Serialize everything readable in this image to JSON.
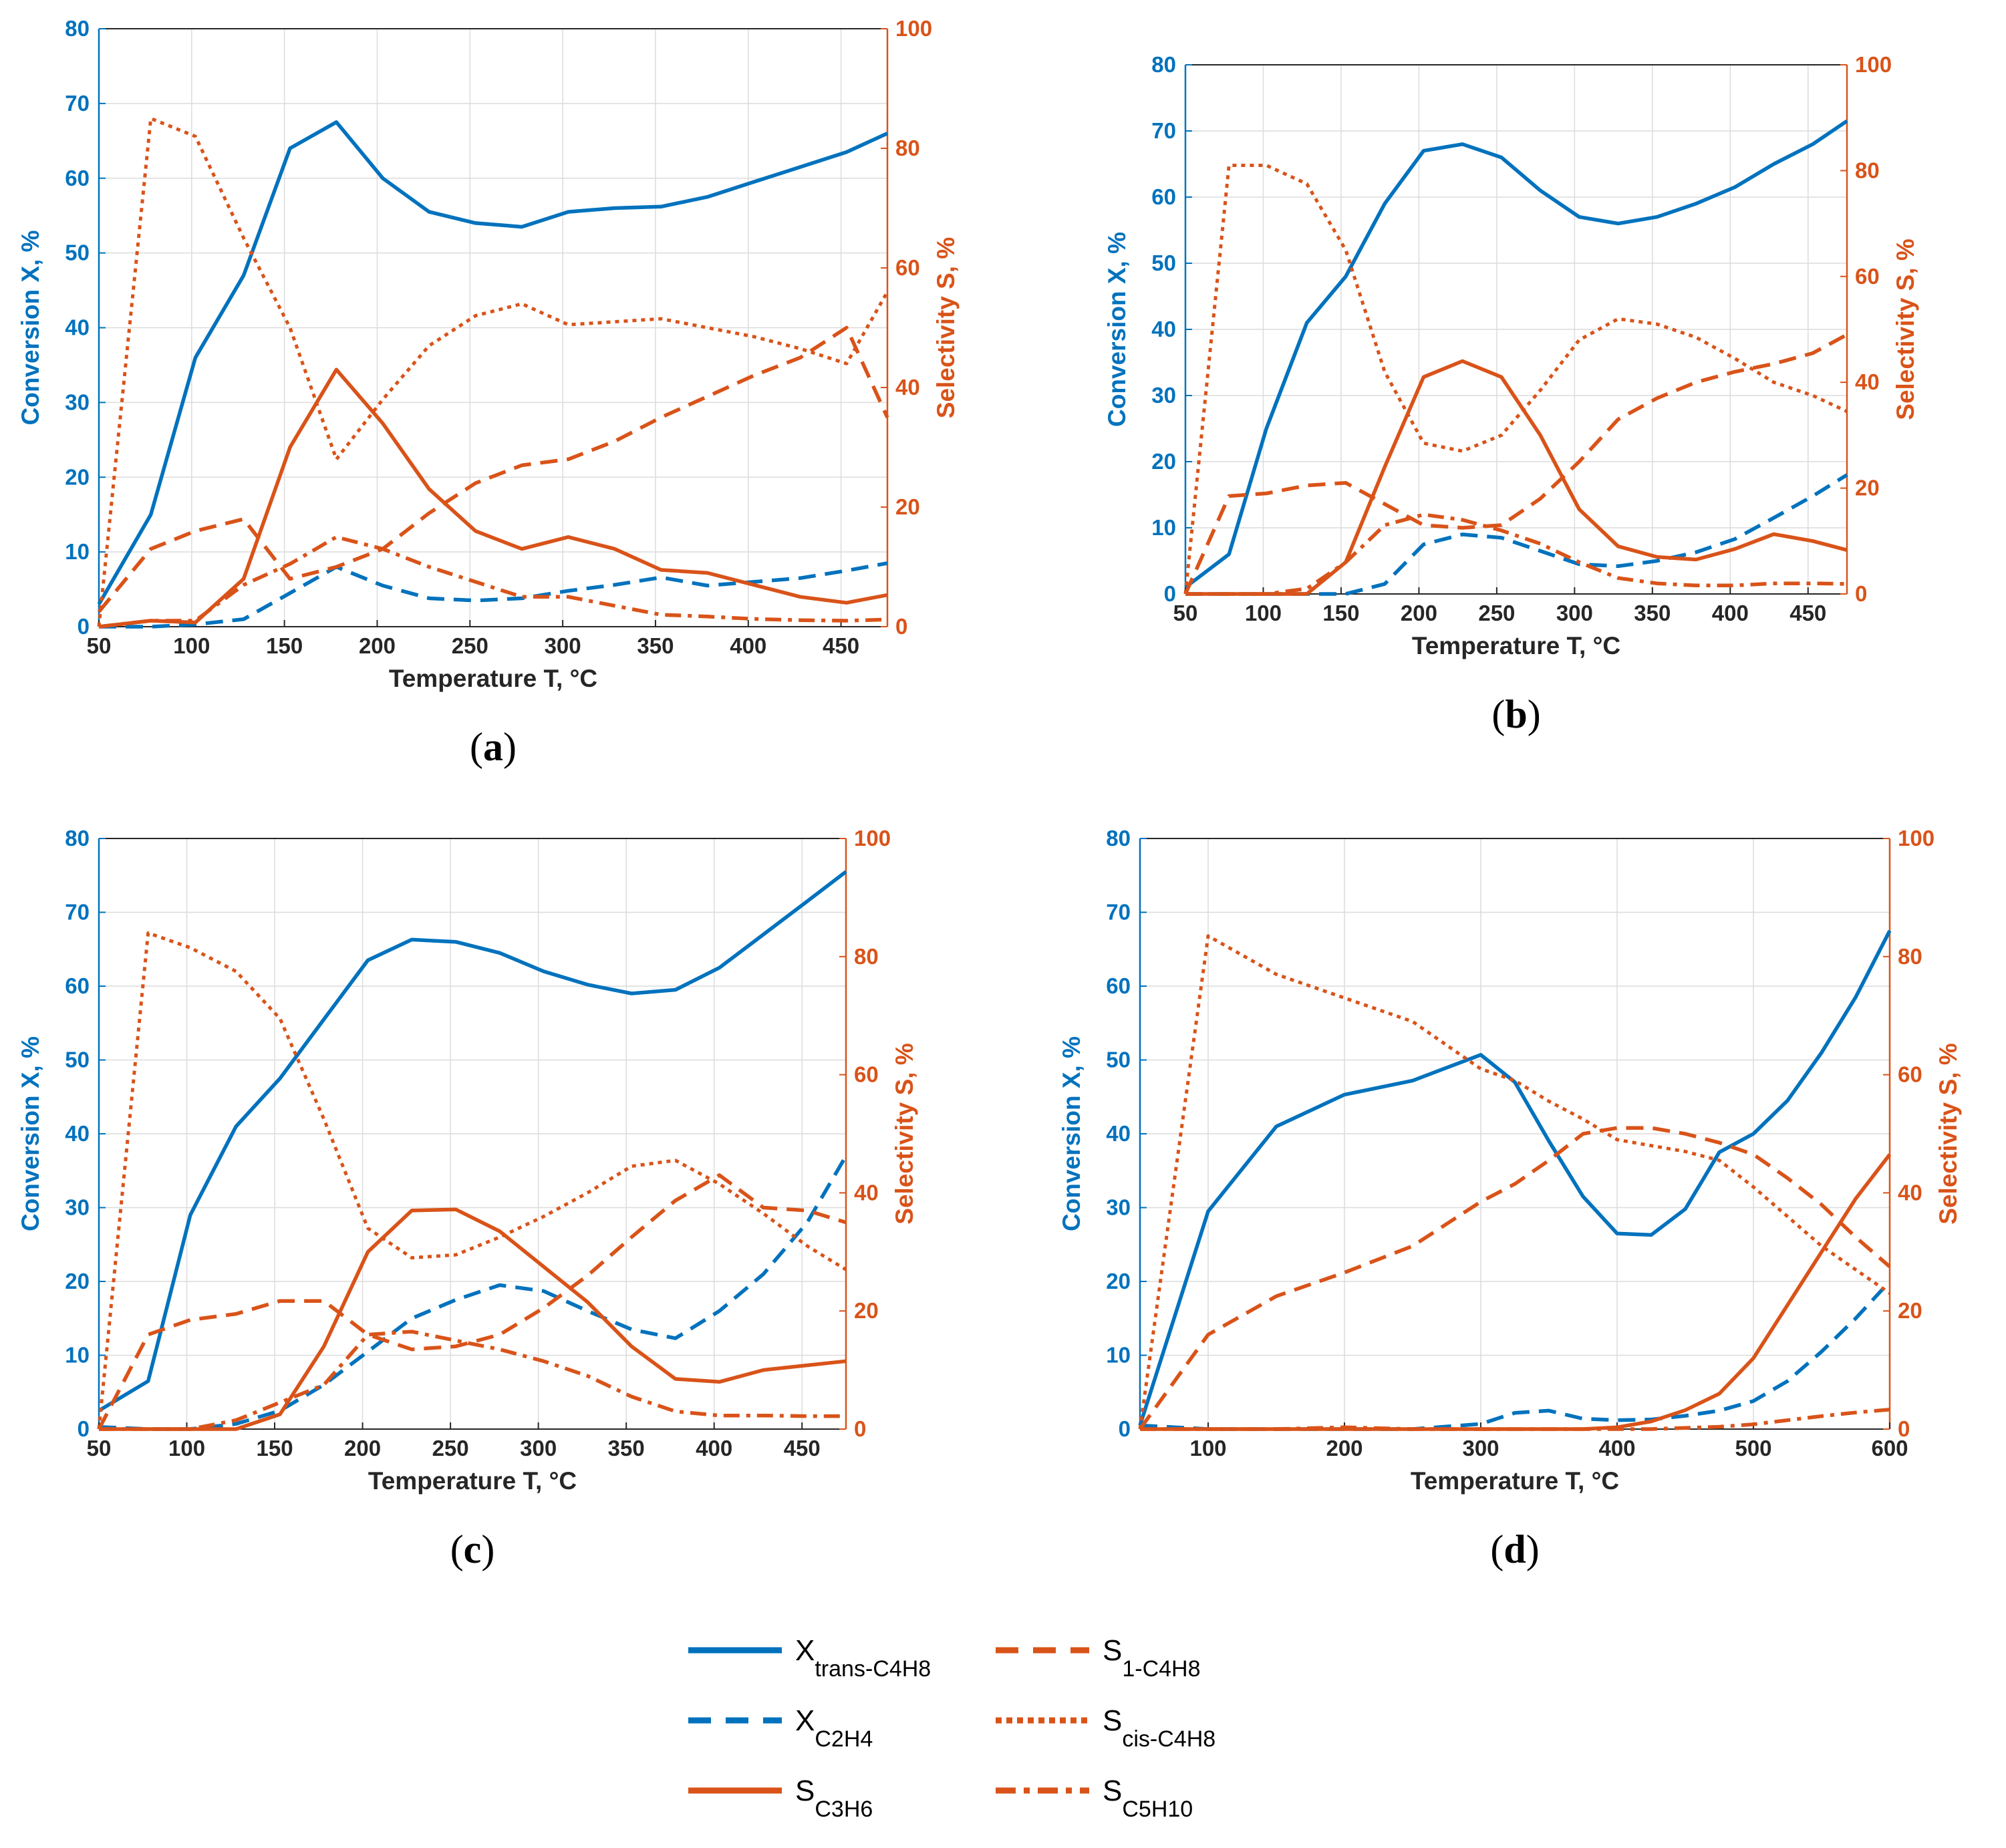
{
  "colors": {
    "x_axis": "#0072BD",
    "s_axis": "#D95319",
    "grid": "#dcdcdc"
  },
  "legend": [
    {
      "main": "X",
      "sub": "trans-C4H8",
      "color": "#0072BD",
      "dash": "solid"
    },
    {
      "main": "X",
      "sub": "C2H4",
      "color": "#0072BD",
      "dash": "dashed"
    },
    {
      "main": "S",
      "sub": "C3H6",
      "color": "#D95319",
      "dash": "solid"
    },
    {
      "main": "S",
      "sub": "1-C4H8",
      "color": "#D95319",
      "dash": "dashed"
    },
    {
      "main": "S",
      "sub": "cis-C4H8",
      "color": "#D95319",
      "dash": "dotted"
    },
    {
      "main": "S",
      "sub": "C5H10",
      "color": "#D95319",
      "dash": "dashdot"
    }
  ],
  "chart_data": [
    {
      "type": "line",
      "label": "a",
      "xlabel": "Temperature T, °C",
      "ylabel": "Conversion X, %",
      "y2label": "Selectivity S, %",
      "xlim": [
        50,
        475
      ],
      "ylim": [
        0,
        80
      ],
      "y2lim": [
        0,
        100
      ],
      "xticks": [
        50,
        100,
        150,
        200,
        250,
        300,
        350,
        400,
        450
      ],
      "yticks": [
        0,
        10,
        20,
        30,
        40,
        50,
        60,
        70,
        80
      ],
      "y2ticks": [
        0,
        20,
        40,
        60,
        80,
        100
      ],
      "x": [
        50,
        78,
        102,
        128,
        153,
        178,
        203,
        228,
        253,
        278,
        303,
        328,
        353,
        378,
        403,
        428,
        453,
        475
      ],
      "series": [
        {
          "name": "X trans-C4H8",
          "axis": "left",
          "dash": "solid",
          "values": [
            3,
            15,
            36,
            47,
            64,
            67.5,
            60,
            55.5,
            54,
            53.5,
            55.5,
            56,
            56.2,
            57.5,
            59.5,
            61.5,
            63.5,
            66
          ]
        },
        {
          "name": "X C2H4",
          "axis": "left",
          "dash": "dashed",
          "values": [
            0,
            0,
            0.3,
            1,
            4.5,
            8,
            5.5,
            3.8,
            3.5,
            3.8,
            4.8,
            5.6,
            6.6,
            5.5,
            6,
            6.5,
            7.5,
            8.5
          ]
        },
        {
          "name": "S C3H6",
          "axis": "right",
          "dash": "solid",
          "values": [
            0,
            1,
            0.7,
            8,
            30,
            43,
            34,
            23,
            16,
            13,
            15,
            13,
            9.5,
            9,
            7,
            5,
            4,
            5.3
          ]
        },
        {
          "name": "S 1-C4H8",
          "axis": "right",
          "dash": "dashed",
          "values": [
            2.5,
            13,
            16,
            18,
            8,
            10,
            13,
            19,
            24,
            27,
            28,
            31,
            35,
            38.5,
            42,
            45,
            50,
            35
          ]
        },
        {
          "name": "S cis-C4H8",
          "axis": "right",
          "dash": "dotted",
          "values": [
            0,
            85,
            82,
            65,
            50,
            28,
            38,
            47,
            52,
            54,
            50.5,
            51,
            51.5,
            50,
            48.5,
            46.5,
            44,
            56
          ]
        },
        {
          "name": "S C5H10",
          "axis": "right",
          "dash": "dashdot",
          "values": [
            0,
            1,
            1,
            7,
            10.5,
            15,
            13,
            10,
            7.5,
            5,
            5,
            3.5,
            2,
            1.7,
            1.3,
            1.1,
            1,
            1.2
          ]
        }
      ]
    },
    {
      "type": "line",
      "label": "b",
      "xlabel": "Temperature T, °C",
      "ylabel": "Conversion X, %",
      "y2label": "Selectivity S, %",
      "xlim": [
        50,
        475
      ],
      "ylim": [
        0,
        80
      ],
      "y2lim": [
        0,
        100
      ],
      "xticks": [
        50,
        100,
        150,
        200,
        250,
        300,
        350,
        400,
        450
      ],
      "yticks": [
        0,
        10,
        20,
        30,
        40,
        50,
        60,
        70,
        80
      ],
      "y2ticks": [
        0,
        20,
        40,
        60,
        80,
        100
      ],
      "x": [
        50,
        78,
        102,
        128,
        153,
        178,
        203,
        228,
        253,
        278,
        303,
        328,
        353,
        378,
        403,
        428,
        453,
        475
      ],
      "series": [
        {
          "name": "X trans-C4H8",
          "axis": "left",
          "dash": "solid",
          "values": [
            1,
            6,
            25,
            41,
            48,
            59,
            67,
            68,
            66,
            61,
            57,
            56,
            57,
            59,
            61.5,
            65,
            68,
            71.5
          ]
        },
        {
          "name": "X C2H4",
          "axis": "left",
          "dash": "dashed",
          "values": [
            0,
            0,
            0,
            0,
            0,
            1.5,
            7.5,
            9,
            8.5,
            6.5,
            4.5,
            4.2,
            5,
            6.3,
            8.3,
            11.5,
            14.8,
            18
          ]
        },
        {
          "name": "S C3H6",
          "axis": "right",
          "dash": "solid",
          "values": [
            0,
            0,
            0,
            0,
            6,
            24,
            41,
            44,
            41,
            30,
            16,
            9,
            7,
            6.5,
            8.5,
            11.3,
            10,
            8.3
          ]
        },
        {
          "name": "S 1-C4H8",
          "axis": "right",
          "dash": "dashed",
          "values": [
            0,
            18.5,
            19,
            20.5,
            21,
            17,
            13,
            12.5,
            13,
            18,
            25,
            33,
            37,
            40,
            42,
            43.5,
            45.5,
            49
          ]
        },
        {
          "name": "S cis-C4H8",
          "axis": "right",
          "dash": "dotted",
          "values": [
            0,
            81,
            81,
            77.5,
            65,
            42,
            28.5,
            27,
            30,
            38.5,
            48,
            52,
            51,
            48.5,
            44.5,
            40,
            37.5,
            34.5
          ]
        },
        {
          "name": "S C5H10",
          "axis": "right",
          "dash": "dashdot",
          "values": [
            0,
            0,
            0,
            1,
            6,
            13,
            15,
            14,
            12,
            9.5,
            6,
            3,
            2,
            1.6,
            1.6,
            2,
            2,
            1.9
          ]
        }
      ]
    },
    {
      "type": "line",
      "label": "c",
      "xlabel": "Temperature T, °C",
      "ylabel": "Conversion X, %",
      "y2label": "Selectivity S, %",
      "xlim": [
        50,
        475
      ],
      "ylim": [
        0,
        80
      ],
      "y2lim": [
        0,
        100
      ],
      "xticks": [
        50,
        100,
        150,
        200,
        250,
        300,
        350,
        400,
        450
      ],
      "yticks": [
        0,
        10,
        20,
        30,
        40,
        50,
        60,
        70,
        80
      ],
      "y2ticks": [
        0,
        20,
        40,
        60,
        80,
        100
      ],
      "x": [
        50,
        78,
        102,
        128,
        153,
        178,
        203,
        228,
        253,
        278,
        303,
        328,
        353,
        378,
        403,
        428,
        453,
        475
      ],
      "series": [
        {
          "name": "X trans-C4H8",
          "axis": "left",
          "dash": "solid",
          "values": [
            2.5,
            6.5,
            29,
            41,
            47.5,
            55.5,
            63.5,
            66.3,
            66,
            64.5,
            62,
            60.2,
            59,
            59.5,
            62.5,
            67,
            71.5,
            75.5
          ]
        },
        {
          "name": "X C2H4",
          "axis": "left",
          "dash": "dashed",
          "values": [
            0.3,
            0,
            0,
            0.7,
            2.5,
            6,
            10.5,
            15,
            17.5,
            19.5,
            18.7,
            16,
            13.5,
            12.3,
            16,
            21,
            28,
            37
          ]
        },
        {
          "name": "S C3H6",
          "axis": "right",
          "dash": "solid",
          "values": [
            0,
            0,
            0,
            0,
            2.5,
            14,
            30,
            37,
            37.2,
            33.5,
            27.5,
            21.5,
            14,
            8.5,
            8,
            10,
            10.8,
            11.5
          ]
        },
        {
          "name": "S 1-C4H8",
          "axis": "right",
          "dash": "dashed",
          "values": [
            0,
            16,
            18.5,
            19.5,
            21.7,
            21.7,
            16,
            13.5,
            14,
            16,
            20.5,
            26,
            32.5,
            38.7,
            43,
            37.5,
            37,
            35
          ]
        },
        {
          "name": "S cis-C4H8",
          "axis": "right",
          "dash": "dotted",
          "values": [
            0,
            84,
            81.5,
            77.5,
            69.5,
            52.5,
            34,
            29,
            29.5,
            32.5,
            36,
            40,
            44.5,
            45.5,
            41.5,
            36.5,
            31,
            27
          ]
        },
        {
          "name": "S C5H10",
          "axis": "right",
          "dash": "dashdot",
          "values": [
            0,
            0,
            0,
            1.5,
            4.5,
            7.5,
            16,
            16.5,
            15,
            13.5,
            11.5,
            9,
            5.5,
            3,
            2.3,
            2.3,
            2.2,
            2.2
          ]
        }
      ]
    },
    {
      "type": "line",
      "label": "d",
      "xlabel": "Temperature T, °C",
      "ylabel": "Conversion X, %",
      "y2label": "Selectivity S, %",
      "xlim": [
        50,
        600
      ],
      "ylim": [
        0,
        80
      ],
      "y2lim": [
        0,
        100
      ],
      "xticks": [
        100,
        200,
        300,
        400,
        500,
        600
      ],
      "yticks": [
        0,
        10,
        20,
        30,
        40,
        50,
        60,
        70,
        80
      ],
      "y2ticks": [
        0,
        20,
        40,
        60,
        80,
        100
      ],
      "x": [
        50,
        100,
        150,
        200,
        250,
        300,
        325,
        350,
        375,
        400,
        425,
        450,
        475,
        500,
        525,
        550,
        575,
        600
      ],
      "series": [
        {
          "name": "X trans-C4H8",
          "axis": "left",
          "dash": "solid",
          "values": [
            0.5,
            29.5,
            41,
            45.3,
            47.2,
            50.7,
            47,
            39,
            31.5,
            26.5,
            26.3,
            29.8,
            37.5,
            40,
            44.5,
            51,
            58.5,
            67.5
          ]
        },
        {
          "name": "X C2H4",
          "axis": "left",
          "dash": "dashed",
          "values": [
            0.5,
            0,
            0,
            0,
            0,
            0.7,
            2.2,
            2.5,
            1.4,
            1.2,
            1.3,
            1.8,
            2.5,
            3.8,
            6.5,
            10.5,
            15,
            20
          ]
        },
        {
          "name": "S C3H6",
          "axis": "right",
          "dash": "solid",
          "values": [
            0,
            0,
            0,
            0,
            0,
            0,
            0,
            0,
            0,
            0.3,
            1.3,
            3.2,
            6,
            12,
            21,
            30,
            39,
            46.5
          ]
        },
        {
          "name": "S 1-C4H8",
          "axis": "right",
          "dash": "dashed",
          "values": [
            0,
            16,
            22.5,
            26.5,
            31,
            38.5,
            41.5,
            45.5,
            50,
            51,
            51,
            50,
            48.5,
            46.5,
            42.5,
            38,
            32.5,
            27.5
          ]
        },
        {
          "name": "S cis-C4H8",
          "axis": "right",
          "dash": "dotted",
          "values": [
            0,
            83.5,
            77,
            73,
            69,
            61,
            59,
            55.5,
            52.5,
            49,
            48,
            47,
            45.5,
            41,
            36,
            31,
            27,
            23
          ]
        },
        {
          "name": "S C5H10",
          "axis": "right",
          "dash": "dashdot",
          "values": [
            0,
            0,
            0,
            0.3,
            0,
            0,
            0,
            0,
            0,
            0,
            0,
            0.2,
            0.4,
            0.8,
            1.5,
            2.2,
            2.8,
            3.3
          ]
        }
      ]
    }
  ]
}
